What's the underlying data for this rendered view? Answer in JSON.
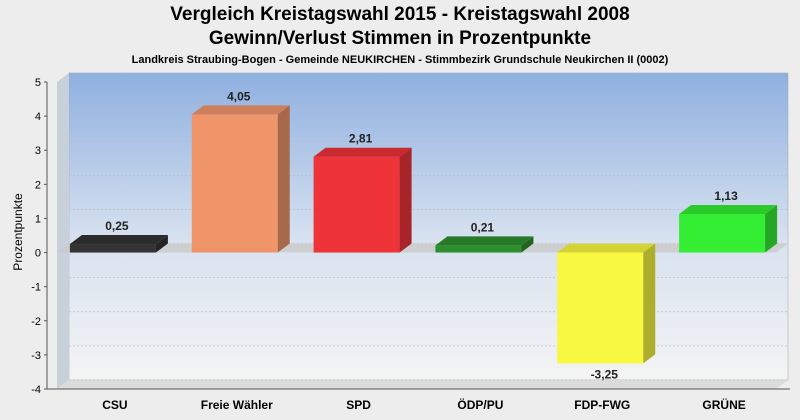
{
  "chart_data": {
    "type": "bar",
    "title": "Vergleich Kreistagswahl 2015 - Kreistagswahl 2008",
    "subtitle": "Gewinn/Verlust Stimmen in Prozentpunkte",
    "subtitle2": "Landkreis Straubing-Bogen - Gemeinde NEUKIRCHEN - Stimmbezirk Grundschule Neukirchen II (0002)",
    "xlabel": "",
    "ylabel": "Prozentpunkte",
    "ylim": [
      -4,
      5
    ],
    "yticks": [
      "5",
      "4",
      "3",
      "2",
      "1",
      "0",
      "-1",
      "-2",
      "-3",
      "-4"
    ],
    "grid": true,
    "categories": [
      "CSU",
      "Freie Wähler",
      "SPD",
      "ÖDP/PU",
      "FDP-FWG",
      "GRÜNE"
    ],
    "values": [
      0.25,
      4.05,
      2.81,
      0.21,
      -3.25,
      1.13
    ],
    "value_labels": [
      "0,25",
      "4,05",
      "2,81",
      "0,21",
      "-3,25",
      "1,13"
    ],
    "colors": [
      "#333333",
      "#f0956a",
      "#ee3339",
      "#2e8f2e",
      "#f8f840",
      "#33ee33"
    ]
  }
}
